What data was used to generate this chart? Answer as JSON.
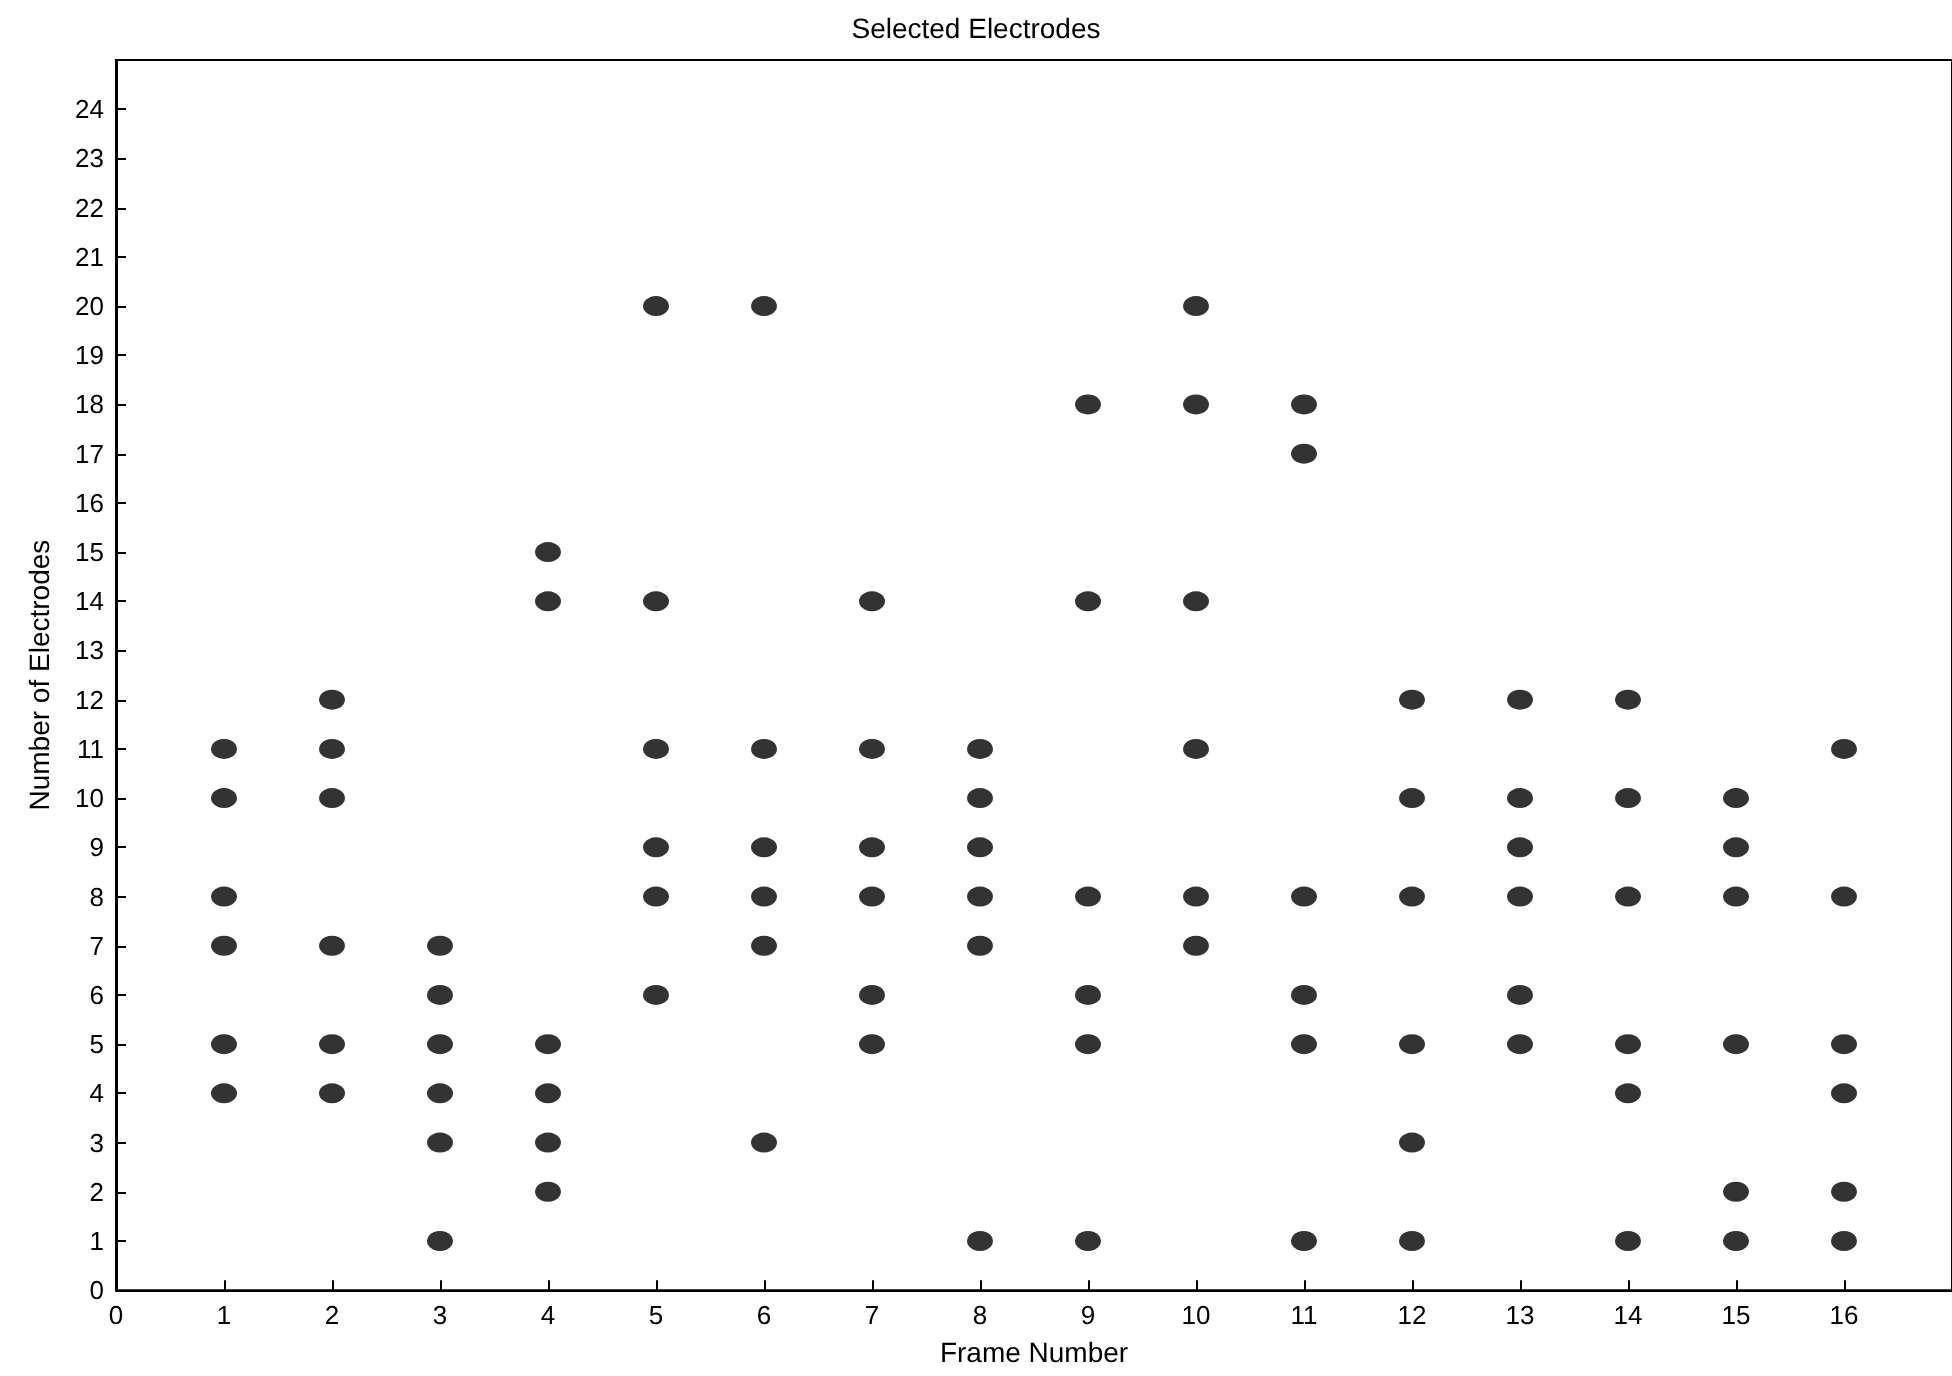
{
  "chart_data": {
    "type": "scatter",
    "title": "Selected Electrodes",
    "xlabel": "Frame Number",
    "ylabel": "Number of Electrodes",
    "x": [
      1,
      1,
      1,
      1,
      1,
      1,
      2,
      2,
      2,
      2,
      2,
      2,
      3,
      3,
      3,
      3,
      3,
      3,
      4,
      4,
      4,
      4,
      4,
      4,
      5,
      5,
      5,
      5,
      5,
      5,
      6,
      6,
      6,
      6,
      6,
      6,
      7,
      7,
      7,
      7,
      7,
      7,
      8,
      8,
      8,
      8,
      8,
      8,
      9,
      9,
      9,
      9,
      9,
      9,
      10,
      10,
      10,
      10,
      10,
      10,
      11,
      11,
      11,
      11,
      11,
      11,
      12,
      12,
      12,
      12,
      12,
      12,
      13,
      13,
      13,
      13,
      13,
      13,
      14,
      14,
      14,
      14,
      14,
      14,
      15,
      15,
      15,
      15,
      15,
      15,
      16,
      16,
      16,
      16,
      16,
      16
    ],
    "series": [
      {
        "color": "#000000",
        "values": [
          4,
          5,
          7,
          8,
          10,
          11,
          4,
          5,
          7,
          10,
          11,
          12,
          1,
          3,
          4,
          5,
          6,
          7,
          2,
          3,
          4,
          5,
          14,
          15,
          6,
          8,
          9,
          11,
          14,
          20,
          3,
          7,
          8,
          9,
          11,
          20,
          5,
          6,
          8,
          9,
          11,
          14,
          1,
          7,
          8,
          9,
          10,
          11,
          1,
          5,
          6,
          8,
          14,
          18,
          7,
          8,
          11,
          14,
          18,
          20,
          1,
          5,
          6,
          8,
          17,
          18,
          1,
          3,
          5,
          8,
          10,
          12,
          5,
          6,
          8,
          9,
          10,
          12,
          1,
          4,
          5,
          8,
          10,
          12,
          1,
          2,
          5,
          8,
          9,
          10,
          1,
          2,
          4,
          5,
          8,
          11
        ]
      }
    ],
    "xlim": [
      0,
      17
    ],
    "xticks": [
      0,
      1,
      2,
      3,
      4,
      5,
      6,
      7,
      8,
      9,
      10,
      11,
      12,
      13,
      14,
      15,
      16
    ],
    "ylim": [
      0,
      25
    ],
    "yticks": [
      0,
      1,
      2,
      3,
      4,
      5,
      6,
      7,
      8,
      9,
      10,
      11,
      12,
      13,
      14,
      15,
      16,
      17,
      18,
      19,
      20,
      21,
      22,
      23,
      24
    ],
    "marker": "circle",
    "grid": false
  }
}
